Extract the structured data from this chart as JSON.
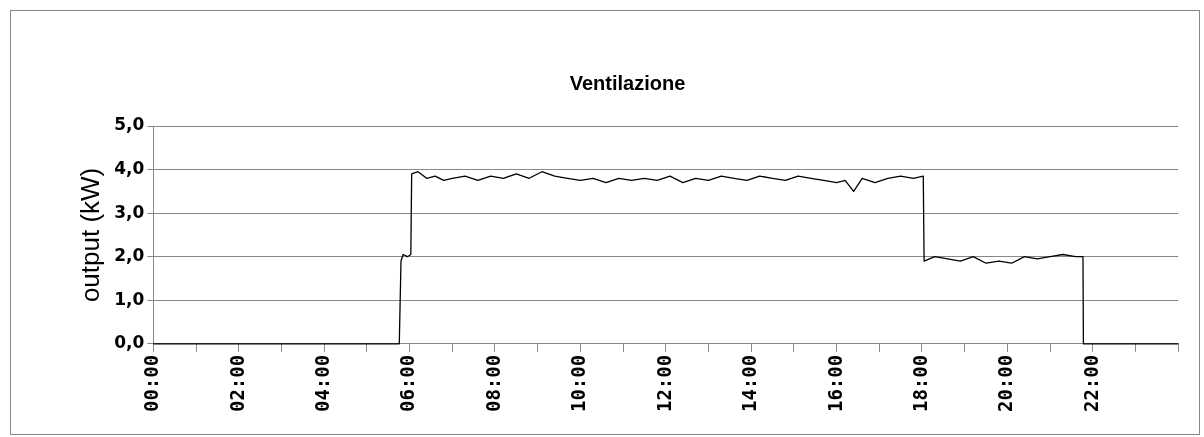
{
  "chart_data": {
    "type": "line",
    "title": "Ventilazione",
    "ylabel": "output (kW)",
    "xlim": [
      0,
      24
    ],
    "ylim": [
      0,
      5
    ],
    "xticks": [
      {
        "value": 0,
        "label": "00:00"
      },
      {
        "value": 1,
        "label": null
      },
      {
        "value": 2,
        "label": "02:00"
      },
      {
        "value": 3,
        "label": null
      },
      {
        "value": 4,
        "label": "04:00"
      },
      {
        "value": 5,
        "label": null
      },
      {
        "value": 6,
        "label": "06:00"
      },
      {
        "value": 7,
        "label": null
      },
      {
        "value": 8,
        "label": "08:00"
      },
      {
        "value": 9,
        "label": null
      },
      {
        "value": 10,
        "label": "10:00"
      },
      {
        "value": 11,
        "label": null
      },
      {
        "value": 12,
        "label": "12:00"
      },
      {
        "value": 13,
        "label": null
      },
      {
        "value": 14,
        "label": "14:00"
      },
      {
        "value": 15,
        "label": null
      },
      {
        "value": 16,
        "label": "16:00"
      },
      {
        "value": 17,
        "label": null
      },
      {
        "value": 18,
        "label": "18:00"
      },
      {
        "value": 19,
        "label": null
      },
      {
        "value": 20,
        "label": "20:00"
      },
      {
        "value": 21,
        "label": null
      },
      {
        "value": 22,
        "label": "22:00"
      },
      {
        "value": 23,
        "label": null
      },
      {
        "value": 24,
        "label": null
      }
    ],
    "yticks": [
      {
        "value": 0,
        "label": "0,0"
      },
      {
        "value": 1,
        "label": "1,0"
      },
      {
        "value": 2,
        "label": "2,0"
      },
      {
        "value": 3,
        "label": "3,0"
      },
      {
        "value": 4,
        "label": "4,0"
      },
      {
        "value": 5,
        "label": "5,0"
      }
    ],
    "grid": "y",
    "legend": false,
    "marker": "none",
    "line_style": "solid",
    "series": [
      {
        "color": "#000000",
        "x": [
          0,
          5.76,
          5.8,
          5.85,
          5.95,
          6.03,
          6.05,
          6.2,
          6.4,
          6.6,
          6.8,
          7.0,
          7.3,
          7.6,
          7.9,
          8.2,
          8.5,
          8.8,
          9.1,
          9.4,
          9.7,
          10.0,
          10.3,
          10.6,
          10.9,
          11.2,
          11.5,
          11.8,
          12.1,
          12.4,
          12.7,
          13.0,
          13.3,
          13.6,
          13.9,
          14.2,
          14.5,
          14.8,
          15.1,
          15.4,
          15.7,
          16.0,
          16.2,
          16.4,
          16.6,
          16.9,
          17.2,
          17.5,
          17.8,
          18.03,
          18.05,
          18.3,
          18.6,
          18.9,
          19.2,
          19.5,
          19.8,
          20.1,
          20.4,
          20.7,
          21.0,
          21.3,
          21.6,
          21.77,
          21.78,
          24
        ],
        "values": [
          0,
          0,
          1.9,
          2.05,
          2.0,
          2.05,
          3.9,
          3.95,
          3.8,
          3.85,
          3.75,
          3.8,
          3.85,
          3.75,
          3.85,
          3.8,
          3.9,
          3.8,
          3.95,
          3.85,
          3.8,
          3.75,
          3.8,
          3.7,
          3.8,
          3.75,
          3.8,
          3.75,
          3.85,
          3.7,
          3.8,
          3.75,
          3.85,
          3.8,
          3.75,
          3.85,
          3.8,
          3.75,
          3.85,
          3.8,
          3.75,
          3.7,
          3.75,
          3.5,
          3.8,
          3.7,
          3.8,
          3.85,
          3.8,
          3.85,
          1.9,
          2.0,
          1.95,
          1.9,
          2.0,
          1.85,
          1.9,
          1.85,
          2.0,
          1.95,
          2.0,
          2.05,
          2.0,
          2.0,
          0,
          0
        ]
      }
    ]
  }
}
